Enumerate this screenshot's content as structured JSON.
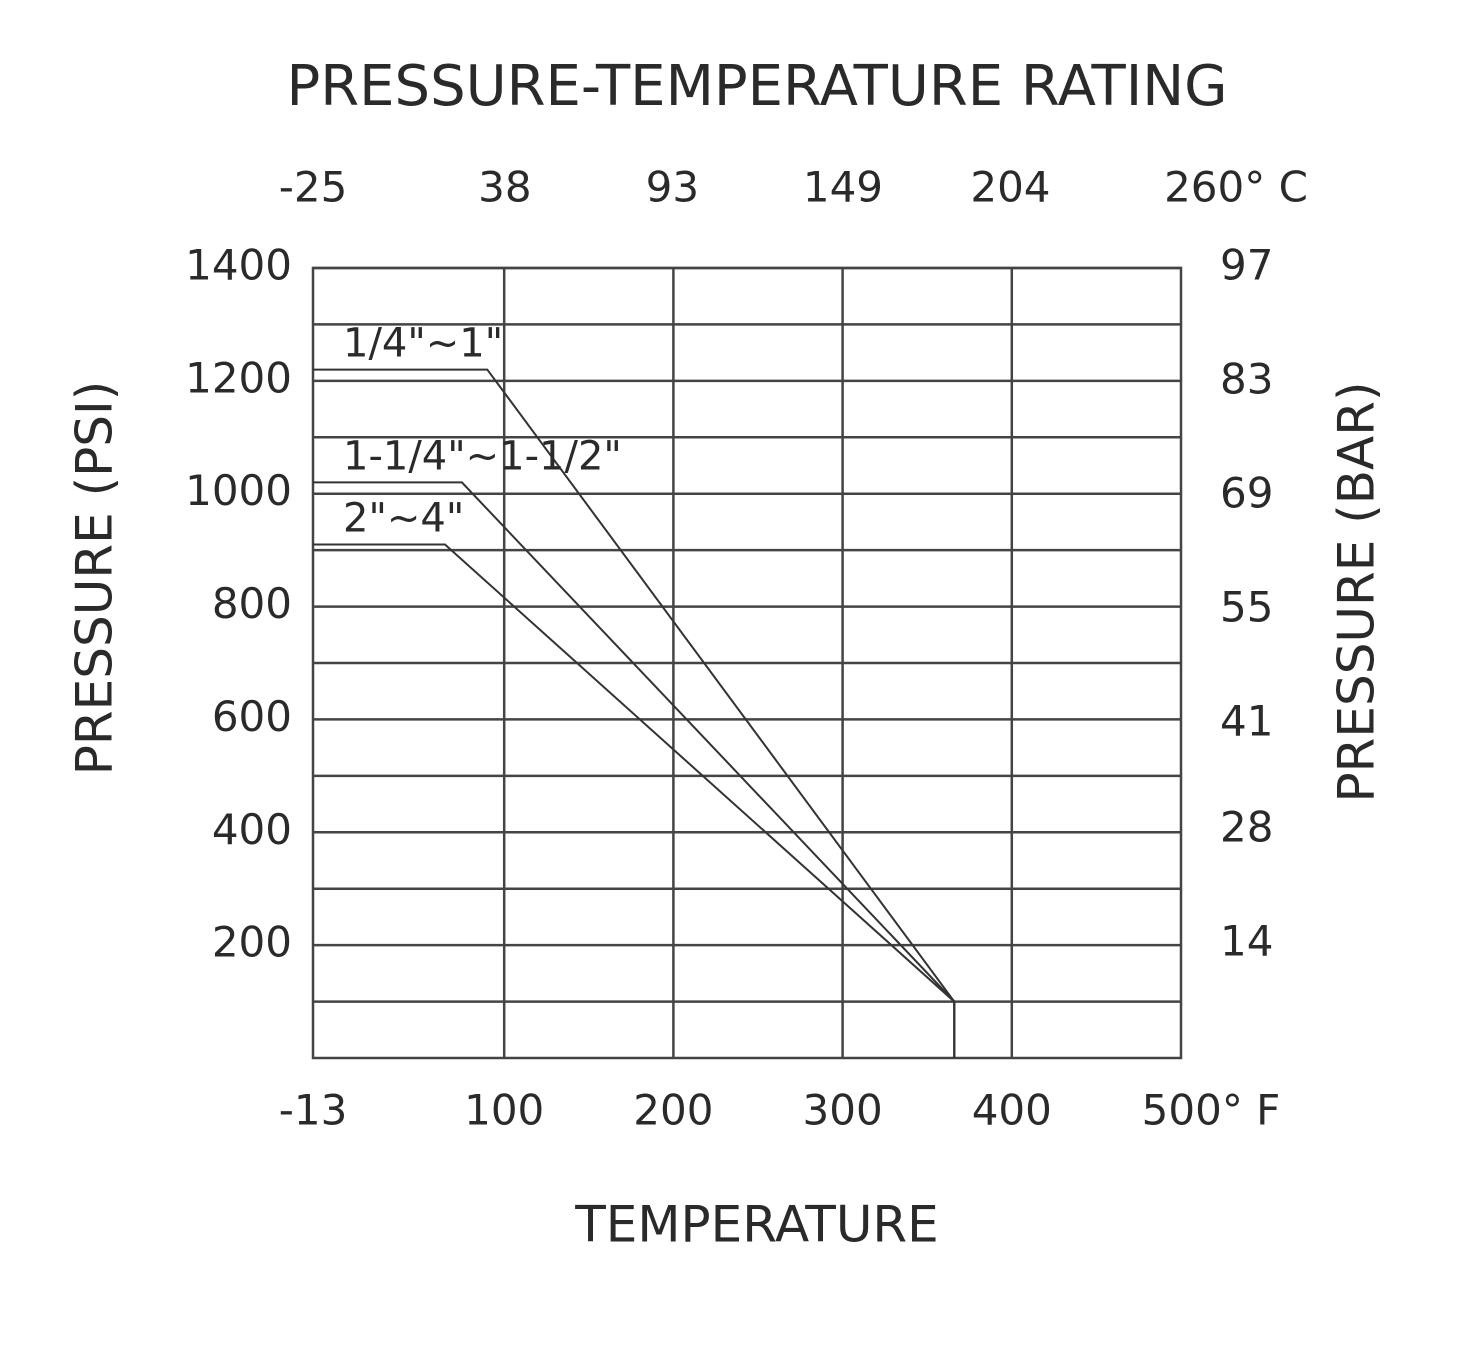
{
  "chart_data": {
    "type": "line",
    "title": "PRESSURE-TEMPERATURE RATING",
    "x_label": "TEMPERATURE",
    "y_label": "PRESSURE (PSI)",
    "y2_label": "PRESSURE (BAR)",
    "xlim": [
      -13,
      500
    ],
    "xticks": [
      -13,
      100,
      200,
      300,
      400,
      {
        "value": 500,
        "label": "500° F"
      }
    ],
    "x2lim": [
      -25,
      260
    ],
    "x2ticks": [
      -25,
      38,
      93,
      149,
      204,
      {
        "value": 260,
        "label": "260° C"
      }
    ],
    "ylim": [
      0,
      1400
    ],
    "yticks": [
      200,
      400,
      600,
      800,
      1000,
      1200,
      1400
    ],
    "minor_yticks": [
      100,
      300,
      500,
      700,
      900,
      1100,
      1300
    ],
    "y2lim": [
      0,
      97
    ],
    "y2ticks": [
      14,
      28,
      41,
      55,
      69,
      83,
      97
    ],
    "grid": true,
    "series": [
      {
        "name": "1/4\"~1\"",
        "color": "#333333",
        "x": [
          -13,
          90,
          366,
          366
        ],
        "values": [
          1220,
          1220,
          100,
          0
        ]
      },
      {
        "name": "1-1/4\"~1-1/2\"",
        "color": "#333333",
        "x": [
          -13,
          75,
          366,
          366
        ],
        "values": [
          1020,
          1020,
          100,
          0
        ]
      },
      {
        "name": "2\"~4\"",
        "color": "#333333",
        "x": [
          -13,
          65,
          366,
          366
        ],
        "values": [
          910,
          910,
          100,
          0
        ]
      }
    ]
  }
}
